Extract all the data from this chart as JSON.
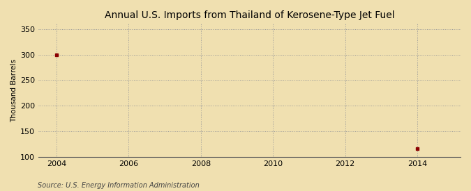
{
  "title": "Annual U.S. Imports from Thailand of Kerosene-Type Jet Fuel",
  "ylabel": "Thousand Barrels",
  "source": "Source: U.S. Energy Information Administration",
  "background_color": "#f0e0b0",
  "plot_bg_color": "#f0e0b0",
  "data_x": [
    2004,
    2014
  ],
  "data_y": [
    300,
    116
  ],
  "data_color": "#8b0000",
  "marker": "s",
  "marker_size": 3,
  "xlim": [
    2003.5,
    2015.2
  ],
  "ylim": [
    100,
    360
  ],
  "yticks": [
    100,
    150,
    200,
    250,
    300,
    350
  ],
  "xticks": [
    2004,
    2006,
    2008,
    2010,
    2012,
    2014
  ],
  "grid_color": "#999999",
  "grid_linestyle": ":",
  "title_fontsize": 10,
  "label_fontsize": 7.5,
  "tick_fontsize": 8,
  "source_fontsize": 7
}
